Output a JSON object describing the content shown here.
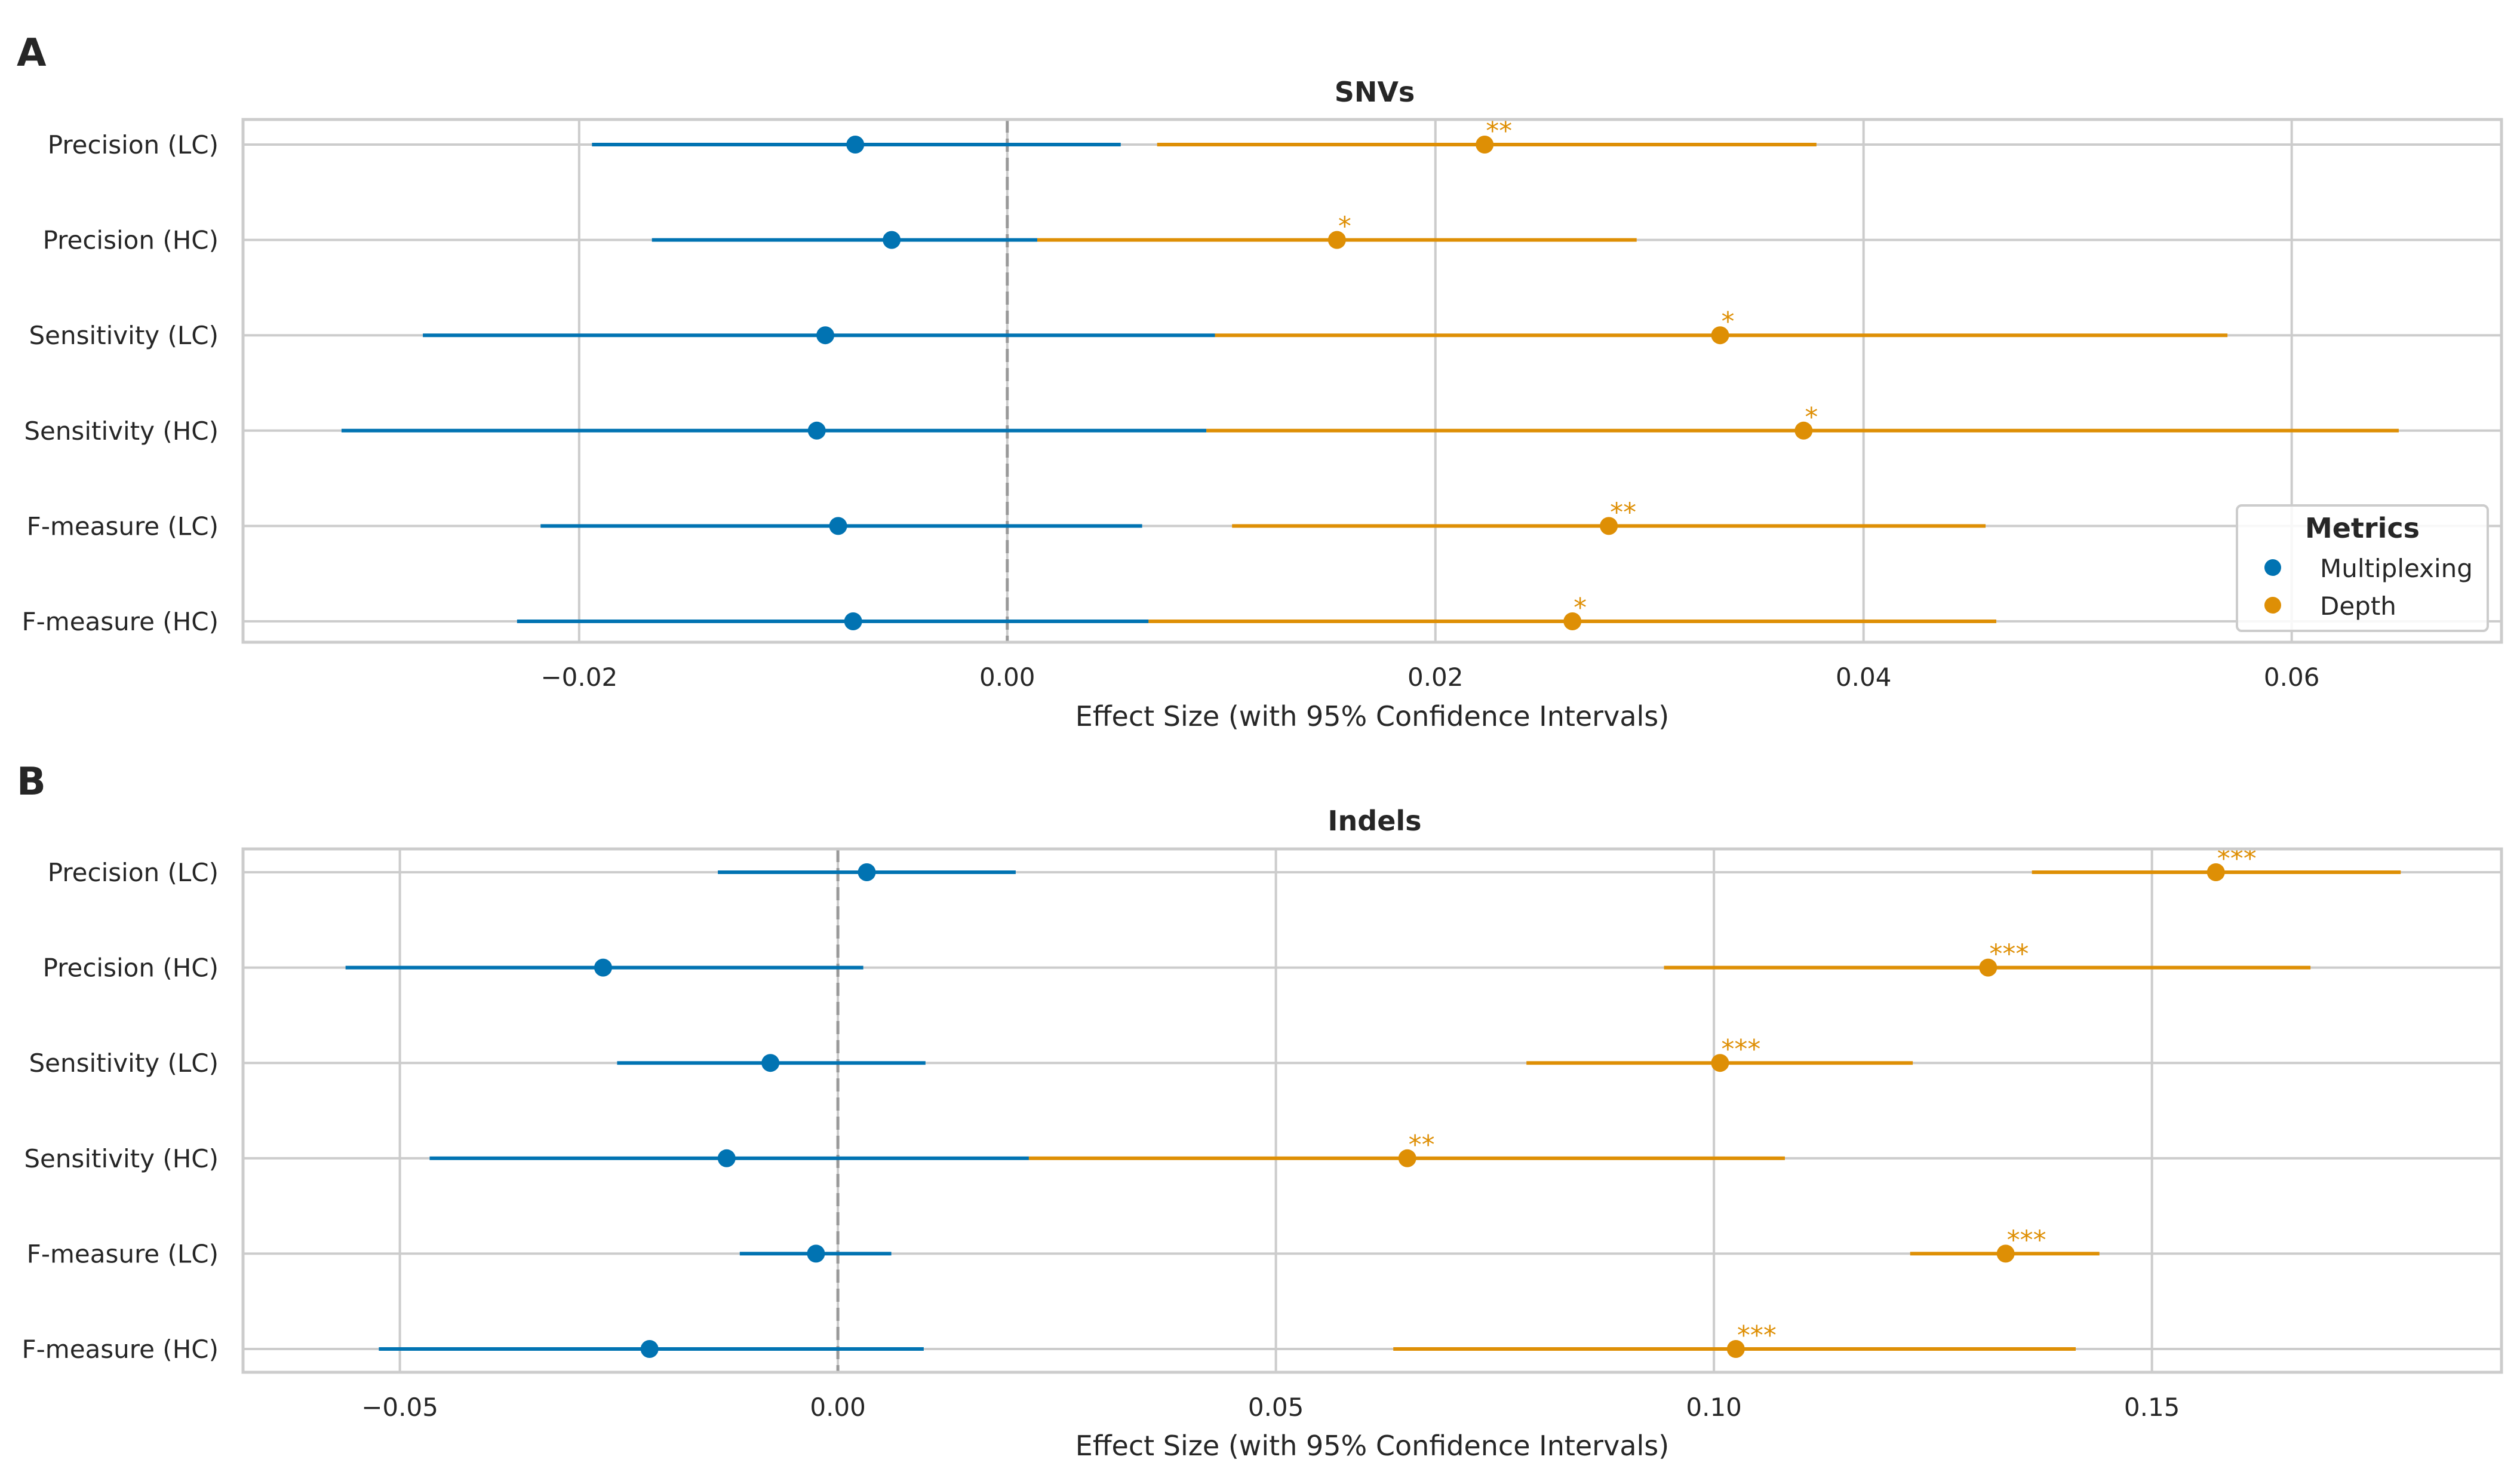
{
  "colors": {
    "multiplexing": "#0173b2",
    "depth": "#de8f05",
    "grid": "#cccccc",
    "frame": "#cccccc",
    "zero_line": "#999999",
    "text": "#262626"
  },
  "chart_data": [
    {
      "type": "scatter",
      "panel_label": "A",
      "title": "SNVs",
      "xlabel": "Effect Size (with 95% Confidence Intervals)",
      "ylabel": "",
      "xlim": [
        -0.0357,
        0.0698
      ],
      "xticks": [
        -0.02,
        0.0,
        0.02,
        0.04,
        0.06
      ],
      "xtick_labels": [
        "−0.02",
        "0.00",
        "0.02",
        "0.04",
        "0.06"
      ],
      "grid": true,
      "reference_line": 0,
      "categories": [
        "Precision (LC)",
        "Precision (HC)",
        "Sensitivity (LC)",
        "Sensitivity (HC)",
        "F-measure (LC)",
        "F-measure (HC)"
      ],
      "legend": {
        "title": "Metrics",
        "position": "right",
        "entries": [
          "Multiplexing",
          "Depth"
        ]
      },
      "series": [
        {
          "name": "Multiplexing",
          "values": [
            -0.0071,
            -0.0054,
            -0.0085,
            -0.0089,
            -0.0079,
            -0.0072
          ],
          "ci_low": [
            -0.0194,
            -0.0166,
            -0.0273,
            -0.0311,
            -0.0218,
            -0.0229
          ],
          "ci_high": [
            0.0053,
            0.0014,
            0.0097,
            0.0093,
            0.0063,
            0.0066
          ],
          "significance": [
            "",
            "",
            "",
            "",
            "",
            ""
          ]
        },
        {
          "name": "Depth",
          "values": [
            0.0223,
            0.0154,
            0.0333,
            0.0372,
            0.0281,
            0.0264
          ],
          "ci_low": [
            0.007,
            0.0014,
            0.0097,
            0.0093,
            0.0105,
            0.0066
          ],
          "ci_high": [
            0.0378,
            0.0294,
            0.057,
            0.065,
            0.0457,
            0.0462
          ],
          "significance": [
            "**",
            "*",
            "*",
            "*",
            "**",
            "*"
          ]
        }
      ]
    },
    {
      "type": "scatter",
      "panel_label": "B",
      "title": "Indels",
      "xlabel": "Effect Size (with 95% Confidence Intervals)",
      "ylabel": "",
      "xlim": [
        -0.0679,
        0.1899
      ],
      "xticks": [
        -0.05,
        0.0,
        0.05,
        0.1,
        0.15
      ],
      "xtick_labels": [
        "−0.05",
        "0.00",
        "0.05",
        "0.10",
        "0.15"
      ],
      "grid": true,
      "reference_line": 0,
      "categories": [
        "Precision (LC)",
        "Precision (HC)",
        "Sensitivity (LC)",
        "Sensitivity (HC)",
        "F-measure (LC)",
        "F-measure (HC)"
      ],
      "series": [
        {
          "name": "Multiplexing",
          "values": [
            0.0033,
            -0.0268,
            -0.0077,
            -0.0127,
            -0.0025,
            -0.0215
          ],
          "ci_low": [
            -0.0137,
            -0.0562,
            -0.0252,
            -0.0466,
            -0.0112,
            -0.0524
          ],
          "ci_high": [
            0.0203,
            0.0029,
            0.01,
            0.0218,
            0.0061,
            0.0098
          ],
          "significance": [
            "",
            "",
            "",
            "",
            "",
            ""
          ]
        },
        {
          "name": "Depth",
          "values": [
            0.1573,
            0.1313,
            0.1007,
            0.065,
            0.1333,
            0.1025
          ],
          "ci_low": [
            0.1363,
            0.0943,
            0.0786,
            0.0218,
            0.1224,
            0.0634
          ],
          "ci_high": [
            0.1784,
            0.1681,
            0.1227,
            0.1081,
            0.144,
            0.1413
          ],
          "significance": [
            "***",
            "***",
            "***",
            "**",
            "***",
            "***"
          ]
        }
      ]
    }
  ]
}
